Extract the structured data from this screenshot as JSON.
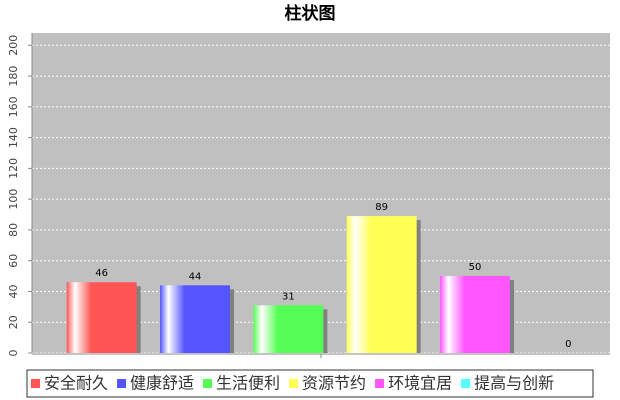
{
  "chart_data": {
    "type": "bar",
    "title": "柱状图",
    "categories": [
      null
    ],
    "series": [
      {
        "name": "安全耐久",
        "color": "#ff5555",
        "values": [
          46
        ]
      },
      {
        "name": "健康舒适",
        "color": "#5555ff",
        "values": [
          44
        ]
      },
      {
        "name": "生活便利",
        "color": "#55ff55",
        "values": [
          31
        ]
      },
      {
        "name": "资源节约",
        "color": "#ffff55",
        "values": [
          89
        ]
      },
      {
        "name": "环境宜居",
        "color": "#ff55ff",
        "values": [
          50
        ]
      },
      {
        "name": "提高与创新",
        "color": "#55ffff",
        "values": [
          0
        ]
      }
    ],
    "ylim": [
      0,
      208
    ],
    "yticks": [
      0,
      20,
      40,
      60,
      80,
      100,
      120,
      140,
      160,
      180,
      200
    ],
    "grid": true,
    "legend": "bottom"
  }
}
